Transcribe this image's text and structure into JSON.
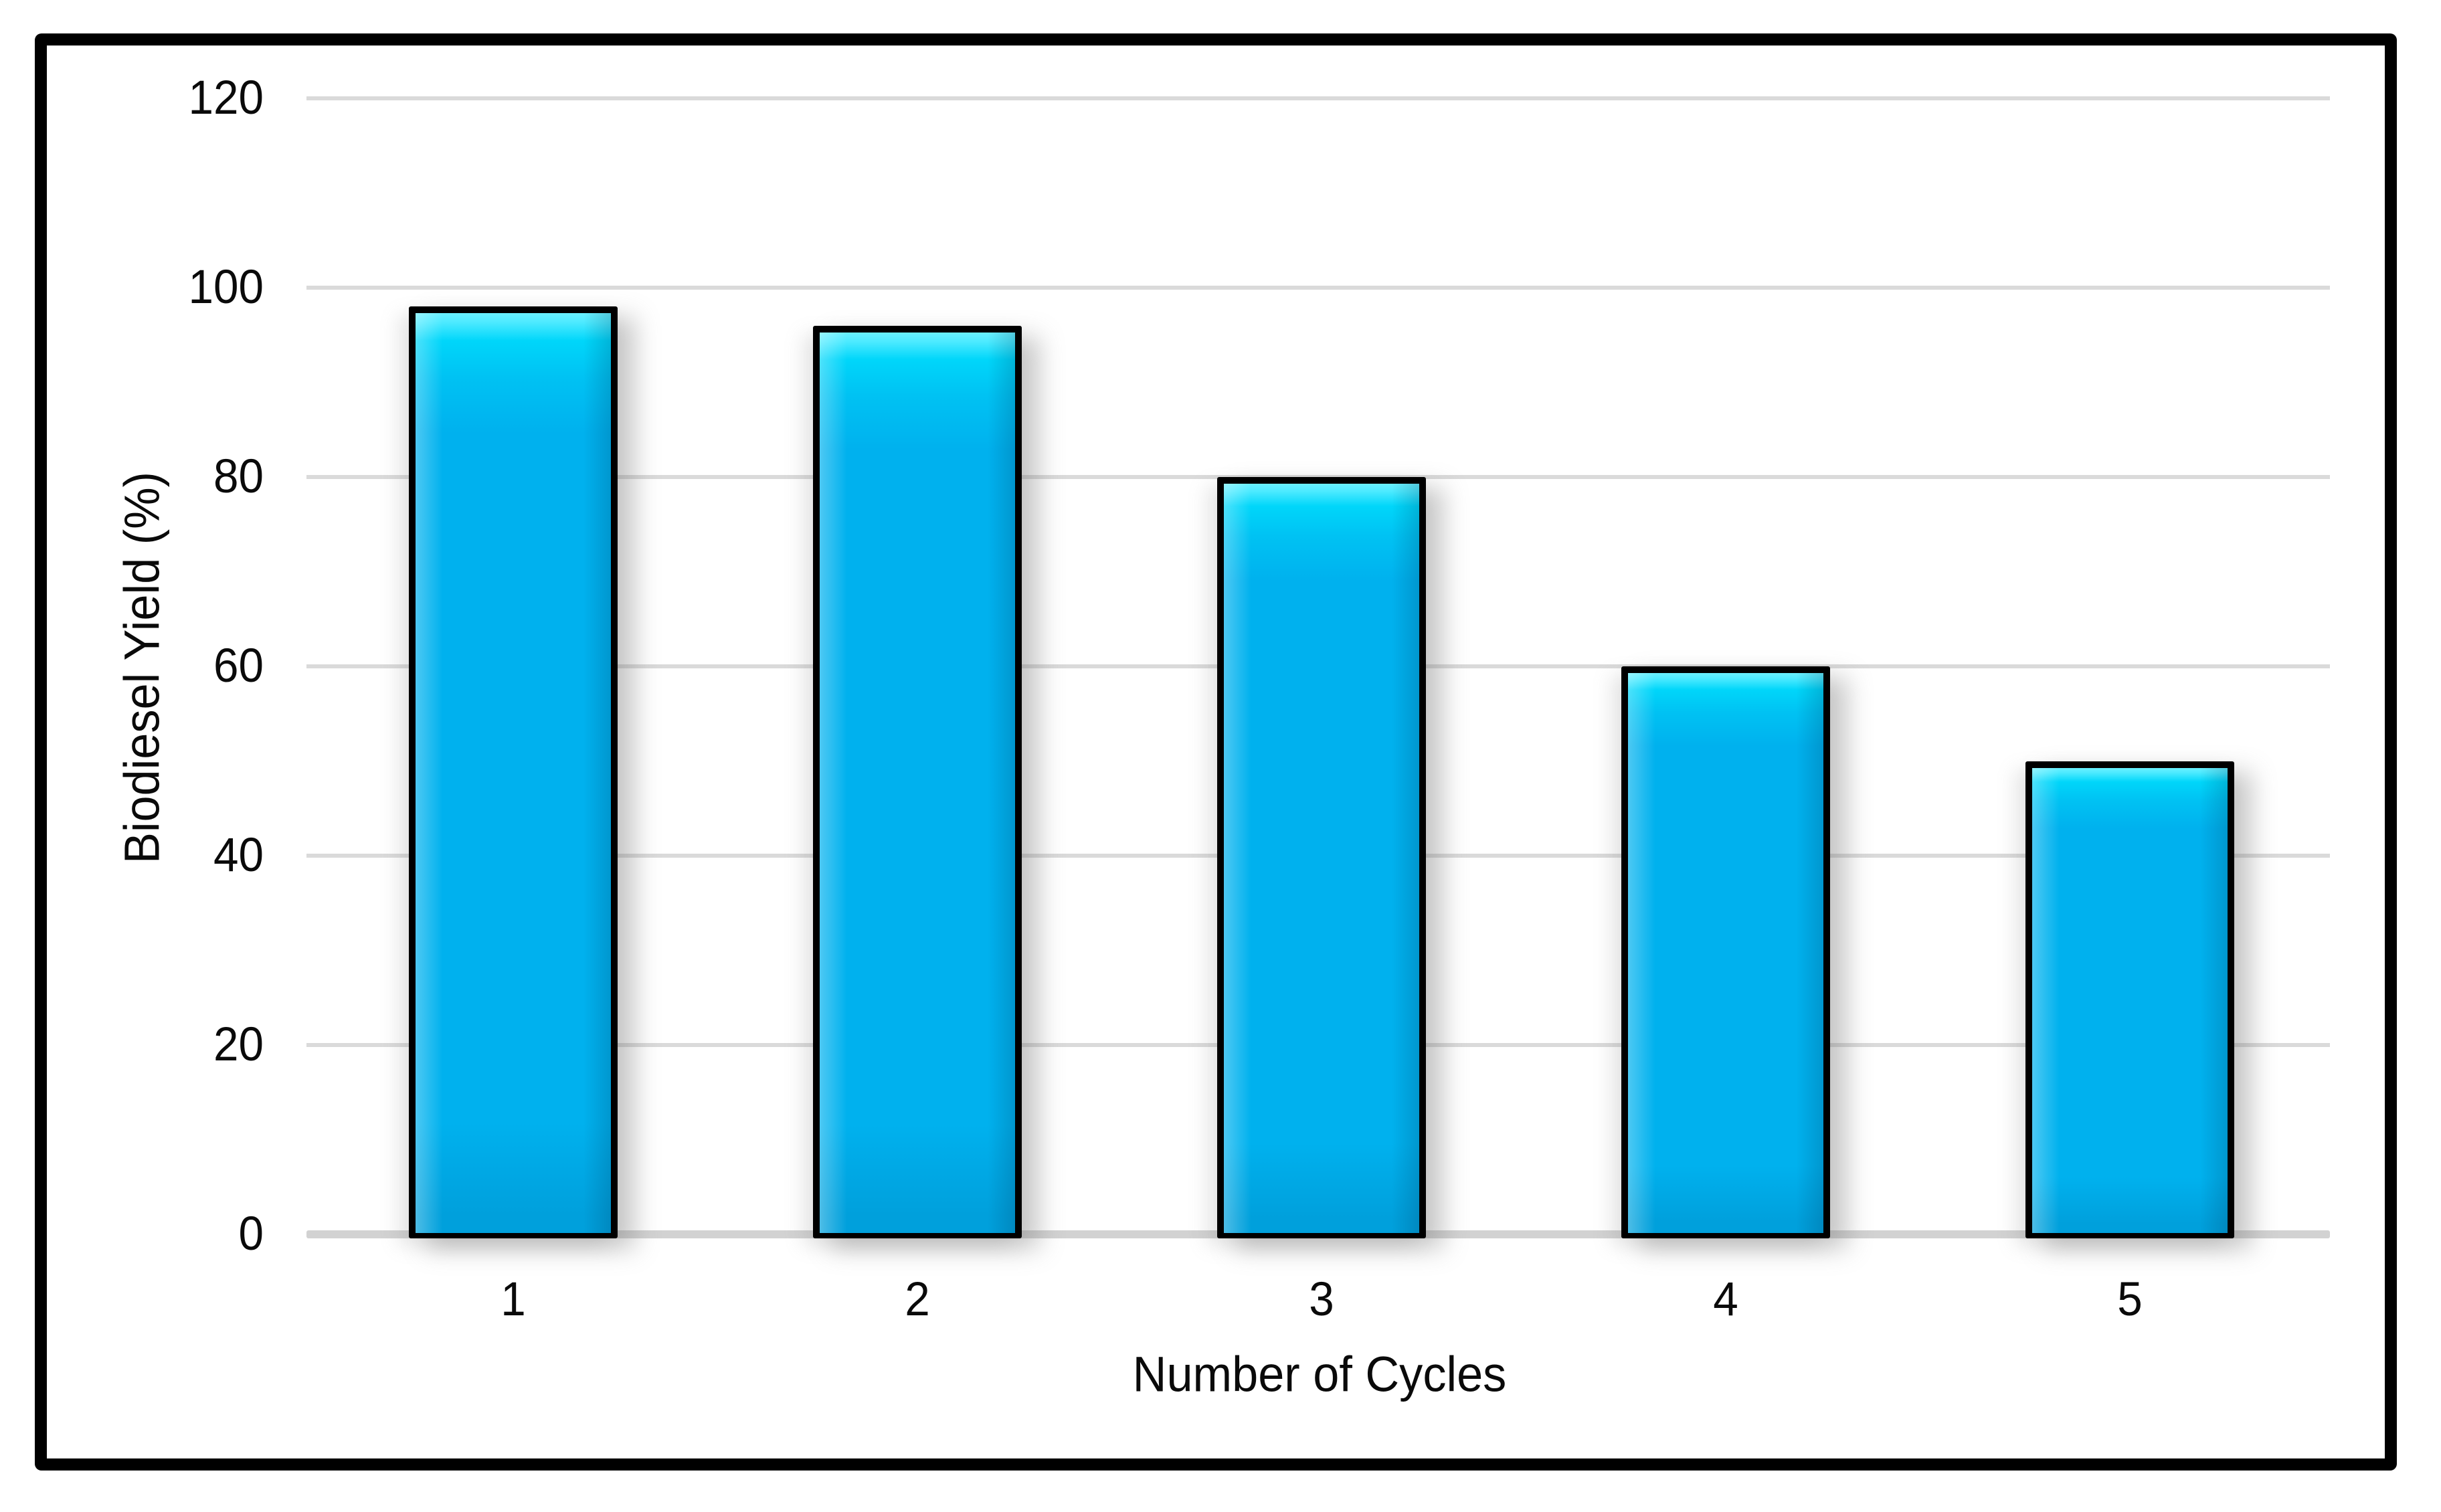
{
  "chart_data": {
    "type": "bar",
    "title": "",
    "categories": [
      "1",
      "2",
      "3",
      "4",
      "5"
    ],
    "values": [
      98,
      96,
      80,
      60,
      50
    ],
    "series_name": "Biodiesel Yield",
    "xlabel": "Number of Cycles",
    "ylabel": "Biodiesel Yield (%)",
    "ylim": [
      0,
      120
    ],
    "yticks": [
      0,
      20,
      40,
      60,
      80,
      100,
      120
    ],
    "grid": "horizontal-only",
    "legend": "none",
    "bar_style": "glossy-beveled-3d"
  },
  "colors": {
    "bar_fill": "#00b1ee",
    "bar_highlight": "#4deaff",
    "bar_highlight_bright": "#6af0ff",
    "bar_upper": "#00c2f3",
    "bar_shade": "#00a0dc",
    "bar_border": "#000000",
    "gridline": "#dadada",
    "axis_line": "#d2d2d2",
    "frame_border": "#000000",
    "text": "#0a0a0a",
    "background": "#ffffff"
  }
}
